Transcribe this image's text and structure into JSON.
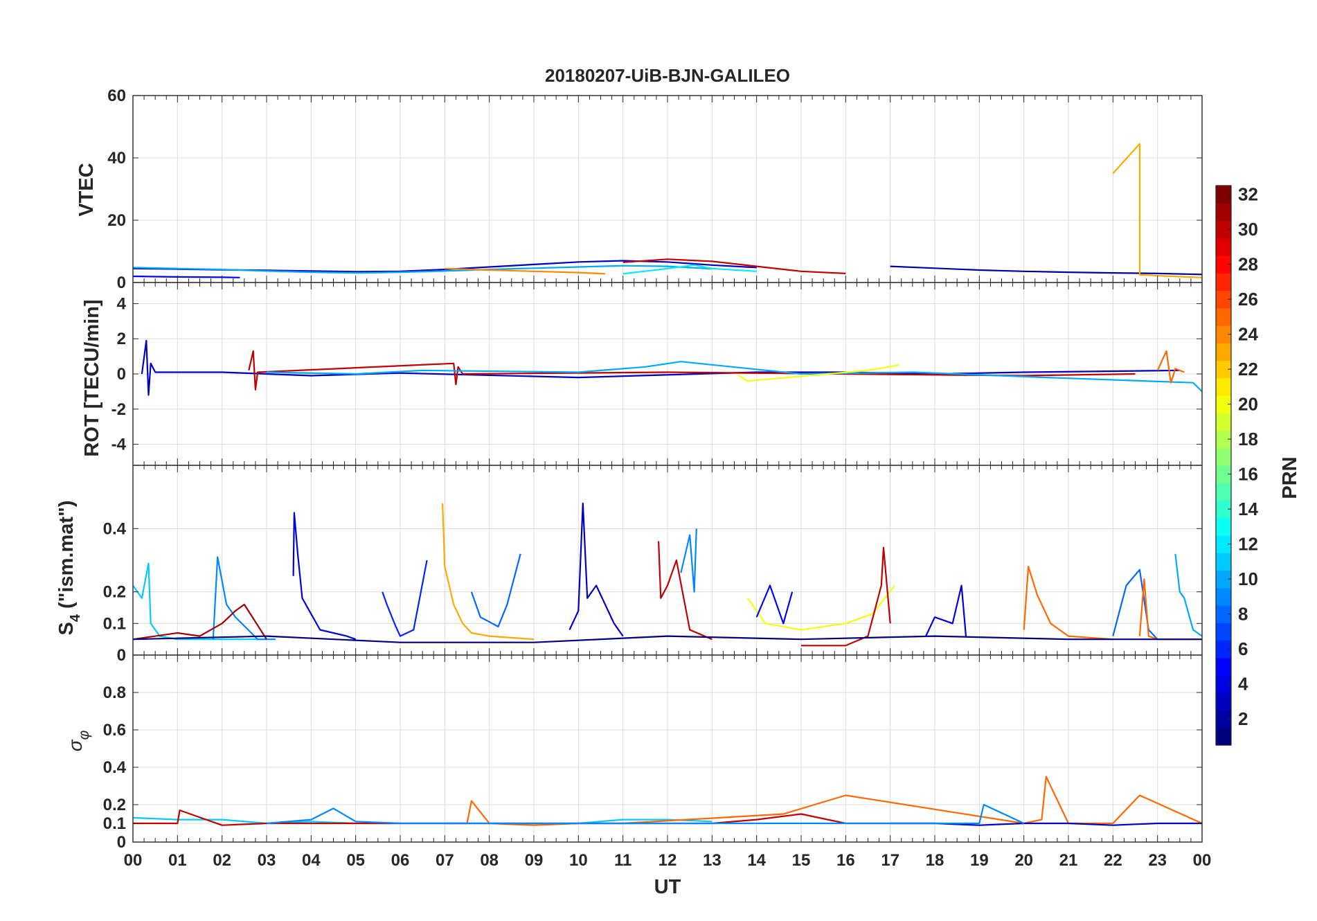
{
  "chart_data": [
    {
      "type": "line",
      "panel": "vtec",
      "title": "20180207-UiB-BJN-GALILEO",
      "ylabel": "VTEC",
      "xlabel": "",
      "xlim": [
        0,
        24
      ],
      "ylim": [
        0,
        60
      ],
      "yticks": [
        0,
        20,
        40,
        60
      ],
      "ytick_labels": [
        "0",
        "20",
        "40",
        "60"
      ],
      "grid": true,
      "series": [
        {
          "name": "PRN 3",
          "prn": 3,
          "x": [
            0,
            1,
            2,
            3,
            4,
            5,
            6,
            7,
            8,
            9,
            10,
            11,
            12,
            13,
            14
          ],
          "y": [
            4.5,
            4.3,
            4.1,
            3.9,
            3.7,
            3.5,
            3.6,
            4.2,
            5.0,
            5.8,
            6.6,
            7.0,
            6.6,
            5.6,
            4.8
          ]
        },
        {
          "name": "PRN 10",
          "prn": 10,
          "x": [
            0,
            1,
            2,
            3,
            4,
            5,
            6,
            7,
            8,
            9,
            10,
            11,
            12,
            13
          ],
          "y": [
            4.8,
            4.5,
            4.2,
            3.7,
            3.3,
            3.1,
            3.3,
            3.7,
            4.2,
            4.6,
            5.0,
            5.4,
            5.2,
            4.4
          ]
        },
        {
          "name": "PRN 30",
          "prn": 30,
          "x": [
            11,
            12,
            13,
            14,
            15,
            16
          ],
          "y": [
            6.5,
            7.5,
            6.8,
            5.2,
            3.6,
            2.9
          ]
        },
        {
          "name": "PRN 24",
          "prn": 24,
          "x": [
            7,
            8,
            9,
            10,
            10.6
          ],
          "y": [
            4.5,
            4.0,
            3.6,
            3.2,
            2.8
          ]
        },
        {
          "name": "PRN 12",
          "prn": 12,
          "x": [
            11,
            12,
            12.6,
            13,
            14
          ],
          "y": [
            2.8,
            4.5,
            5.6,
            4.5,
            3.6
          ]
        },
        {
          "name": "PRN 2",
          "prn": 2,
          "x": [
            17,
            18,
            19,
            20,
            21,
            22,
            23,
            24
          ],
          "y": [
            5.2,
            4.6,
            4.0,
            3.6,
            3.3,
            3.1,
            2.9,
            2.6
          ]
        },
        {
          "name": "PRN 23",
          "prn": 23,
          "x": [
            22,
            22.6,
            22.6,
            23,
            24
          ],
          "y": [
            35,
            44.5,
            2.5,
            2.2,
            1.6
          ]
        },
        {
          "name": "PRN 5",
          "prn": 5,
          "x": [
            0,
            1,
            2,
            2.4
          ],
          "y": [
            2.0,
            1.8,
            1.7,
            1.6
          ]
        }
      ]
    },
    {
      "type": "line",
      "panel": "rot",
      "ylabel": "ROT [TECU/min]",
      "xlim": [
        0,
        24
      ],
      "ylim": [
        -5.2,
        5.2
      ],
      "yticks": [
        -4,
        -2,
        0,
        2,
        4
      ],
      "ytick_labels": [
        "-4",
        "-2",
        "0",
        "2",
        "4"
      ],
      "grid": true,
      "series": [
        {
          "name": "PRN 3",
          "prn": 3,
          "x": [
            0.2,
            0.3,
            0.35,
            0.4,
            0.5,
            2,
            4,
            6,
            10,
            14,
            16,
            18,
            20,
            23.5
          ],
          "y": [
            0,
            1.9,
            -1.2,
            0.6,
            0.1,
            0.1,
            -0.1,
            0.05,
            -0.2,
            0.1,
            0.1,
            0.0,
            0.1,
            0.2
          ]
        },
        {
          "name": "PRN 30",
          "prn": 30,
          "x": [
            2.6,
            2.7,
            2.75,
            2.8,
            7.2,
            7.25,
            7.3,
            7.4,
            12,
            16,
            20,
            22.5
          ],
          "y": [
            0.2,
            1.3,
            -0.9,
            0.1,
            0.6,
            -0.6,
            0.4,
            0.0,
            0.1,
            0.0,
            -0.1,
            0.0
          ]
        },
        {
          "name": "PRN 10",
          "prn": 10,
          "x": [
            3,
            5,
            6.5,
            10,
            11.5,
            12.3,
            15,
            17.5,
            20.5,
            23.8,
            24
          ],
          "y": [
            0.1,
            0.0,
            0.2,
            0.1,
            0.4,
            0.7,
            0.0,
            0.1,
            -0.2,
            -0.5,
            -1.0
          ]
        },
        {
          "name": "PRN 20",
          "prn": 20,
          "x": [
            13.6,
            13.8,
            16.5,
            17.2
          ],
          "y": [
            -0.1,
            -0.4,
            0.2,
            0.5
          ]
        },
        {
          "name": "PRN 25",
          "prn": 25,
          "x": [
            23,
            23.2,
            23.3,
            23.4,
            23.6
          ],
          "y": [
            0.2,
            1.3,
            -0.5,
            0.3,
            0.1
          ]
        }
      ]
    },
    {
      "type": "line",
      "panel": "s4",
      "ylabel": "S4 (\"ism.mat\")",
      "xlim": [
        0,
        24
      ],
      "ylim": [
        0,
        0.6
      ],
      "yticks": [
        0,
        0.1,
        0.2,
        0.4
      ],
      "ytick_labels": [
        "0",
        "0.1",
        "0.2",
        "0.4"
      ],
      "grid": true,
      "series": [
        {
          "name": "PRN 11",
          "prn": 11,
          "x": [
            0,
            0.2,
            0.35,
            0.4,
            0.6,
            1,
            2,
            3
          ],
          "y": [
            0.22,
            0.18,
            0.29,
            0.1,
            0.06,
            0.05,
            0.05,
            0.05
          ]
        },
        {
          "name": "PRN 9",
          "prn": 9,
          "x": [
            1.8,
            1.9,
            2.1,
            2.3,
            2.8,
            3.2
          ],
          "y": [
            0.05,
            0.31,
            0.16,
            0.12,
            0.05,
            0.05
          ]
        },
        {
          "name": "PRN 4",
          "prn": 4,
          "x": [
            3.6,
            3.62,
            3.7,
            3.8,
            4.2,
            4.8,
            5
          ],
          "y": [
            0.25,
            0.45,
            0.32,
            0.18,
            0.08,
            0.06,
            0.05
          ]
        },
        {
          "name": "PRN 31",
          "prn": 31,
          "x": [
            0,
            1,
            1.5,
            2,
            2.3,
            2.5,
            3
          ],
          "y": [
            0.05,
            0.07,
            0.06,
            0.1,
            0.14,
            0.16,
            0.05
          ]
        },
        {
          "name": "PRN 6",
          "prn": 6,
          "x": [
            5.6,
            5.7,
            5.9,
            6,
            6.3,
            6.6
          ],
          "y": [
            0.2,
            0.16,
            0.09,
            0.06,
            0.08,
            0.3
          ]
        },
        {
          "name": "PRN 23",
          "prn": 23,
          "x": [
            6.95,
            7,
            7.2,
            7.4,
            7.6,
            8,
            9
          ],
          "y": [
            0.48,
            0.28,
            0.16,
            0.1,
            0.07,
            0.06,
            0.05
          ]
        },
        {
          "name": "PRN 8",
          "prn": 8,
          "x": [
            7.6,
            7.8,
            8.2,
            8.4,
            8.7
          ],
          "y": [
            0.2,
            0.12,
            0.09,
            0.16,
            0.32
          ]
        },
        {
          "name": "PRN 3",
          "prn": 3,
          "x": [
            9.8,
            10,
            10.1,
            10.2,
            10.4,
            10.8,
            11
          ],
          "y": [
            0.08,
            0.14,
            0.48,
            0.18,
            0.22,
            0.1,
            0.06
          ]
        },
        {
          "name": "PRN 30",
          "prn": 30,
          "x": [
            11.8,
            11.85,
            12,
            12.2,
            12.5,
            13
          ],
          "y": [
            0.36,
            0.18,
            0.22,
            0.3,
            0.08,
            0.05
          ]
        },
        {
          "name": "PRN 9",
          "prn": 9,
          "x": [
            12.3,
            12.5,
            12.6,
            12.65
          ],
          "y": [
            0.26,
            0.38,
            0.2,
            0.4
          ]
        },
        {
          "name": "PRN 20",
          "prn": 20,
          "x": [
            13.8,
            14.2,
            15,
            16,
            16.6,
            17.1
          ],
          "y": [
            0.18,
            0.1,
            0.08,
            0.1,
            0.13,
            0.22
          ]
        },
        {
          "name": "PRN 5",
          "prn": 5,
          "x": [
            14,
            14.3,
            14.6,
            14.8
          ],
          "y": [
            0.12,
            0.22,
            0.1,
            0.2
          ]
        },
        {
          "name": "PRN 30",
          "prn": 30,
          "x": [
            15,
            16,
            16.5,
            16.8,
            16.85,
            17
          ],
          "y": [
            0.03,
            0.03,
            0.06,
            0.22,
            0.34,
            0.1
          ]
        },
        {
          "name": "PRN 4",
          "prn": 4,
          "x": [
            17.8,
            18,
            18.4,
            18.6,
            18.7
          ],
          "y": [
            0.06,
            0.12,
            0.1,
            0.22,
            0.06
          ]
        },
        {
          "name": "PRN 25",
          "prn": 25,
          "x": [
            20,
            20.1,
            20.3,
            20.6,
            21,
            22
          ],
          "y": [
            0.08,
            0.28,
            0.19,
            0.1,
            0.06,
            0.05
          ]
        },
        {
          "name": "PRN 8",
          "prn": 8,
          "x": [
            22,
            22.3,
            22.6,
            22.8,
            23
          ],
          "y": [
            0.06,
            0.22,
            0.27,
            0.08,
            0.05
          ]
        },
        {
          "name": "PRN 10",
          "prn": 10,
          "x": [
            23.4,
            23.5,
            23.6,
            23.8,
            24
          ],
          "y": [
            0.32,
            0.2,
            0.18,
            0.08,
            0.06
          ]
        },
        {
          "name": "PRN 25",
          "prn": 25,
          "x": [
            22.6,
            22.7,
            22.8,
            23,
            24
          ],
          "y": [
            0.06,
            0.24,
            0.06,
            0.05,
            0.05
          ]
        },
        {
          "name": "PRN 1",
          "prn": 1,
          "x": [
            0,
            3,
            6,
            9,
            12,
            15,
            18,
            21,
            24
          ],
          "y": [
            0.05,
            0.06,
            0.04,
            0.04,
            0.06,
            0.05,
            0.06,
            0.05,
            0.05
          ]
        }
      ]
    },
    {
      "type": "line",
      "panel": "sigma_phi",
      "ylabel": "σφ",
      "xlabel": "UT",
      "xlim": [
        0,
        24
      ],
      "ylim": [
        0,
        1
      ],
      "yticks": [
        0,
        0.1,
        0.2,
        0.4,
        0.6,
        0.8
      ],
      "ytick_labels": [
        "0",
        "0.1",
        "0.2",
        "0.4",
        "0.6",
        "0.8"
      ],
      "xticks": [
        0,
        1,
        2,
        3,
        4,
        5,
        6,
        7,
        8,
        9,
        10,
        11,
        12,
        13,
        14,
        15,
        16,
        17,
        18,
        19,
        20,
        21,
        22,
        23,
        24
      ],
      "xtick_labels": [
        "00",
        "01",
        "02",
        "03",
        "04",
        "05",
        "06",
        "07",
        "08",
        "09",
        "10",
        "11",
        "12",
        "13",
        "14",
        "15",
        "16",
        "17",
        "18",
        "19",
        "20",
        "21",
        "22",
        "23",
        "00"
      ],
      "grid": true,
      "series": [
        {
          "name": "PRN 11",
          "prn": 11,
          "x": [
            0,
            1,
            2,
            3,
            4,
            5,
            6,
            7,
            8,
            9,
            10,
            11,
            12,
            13
          ],
          "y": [
            0.13,
            0.12,
            0.12,
            0.1,
            0.11,
            0.1,
            0.1,
            0.1,
            0.1,
            0.1,
            0.1,
            0.12,
            0.12,
            0.11
          ]
        },
        {
          "name": "PRN 25",
          "prn": 25,
          "x": [
            7,
            7.5,
            7.6,
            8,
            9,
            10,
            11,
            14.6,
            16,
            20,
            20.4,
            20.5,
            21,
            22,
            22.6,
            24
          ],
          "y": [
            0.1,
            0.1,
            0.22,
            0.1,
            0.09,
            0.1,
            0.1,
            0.15,
            0.25,
            0.1,
            0.12,
            0.35,
            0.1,
            0.1,
            0.25,
            0.1
          ]
        },
        {
          "name": "PRN 30",
          "prn": 30,
          "x": [
            0,
            1,
            1.05,
            2,
            3,
            12,
            13,
            14,
            15,
            16,
            17,
            18
          ],
          "y": [
            0.1,
            0.1,
            0.17,
            0.09,
            0.1,
            0.1,
            0.1,
            0.12,
            0.15,
            0.1,
            0.1,
            0.1
          ]
        },
        {
          "name": "PRN 3",
          "prn": 3,
          "x": [
            17,
            18,
            19,
            20,
            21,
            22,
            23,
            24
          ],
          "y": [
            0.1,
            0.1,
            0.09,
            0.1,
            0.1,
            0.09,
            0.1,
            0.1
          ]
        },
        {
          "name": "PRN 9",
          "prn": 9,
          "x": [
            3,
            4,
            4.5,
            5,
            6,
            18,
            19,
            19.1,
            20
          ],
          "y": [
            0.1,
            0.12,
            0.18,
            0.11,
            0.1,
            0.1,
            0.1,
            0.2,
            0.1
          ]
        }
      ]
    }
  ],
  "colorbar": {
    "label": "PRN",
    "min": 1,
    "max": 32,
    "ticks": [
      2,
      4,
      6,
      8,
      10,
      12,
      14,
      16,
      18,
      20,
      22,
      24,
      26,
      28,
      30,
      32
    ],
    "tick_labels": [
      "2",
      "4",
      "6",
      "8",
      "10",
      "12",
      "14",
      "16",
      "18",
      "20",
      "22",
      "24",
      "26",
      "28",
      "30",
      "32"
    ],
    "colormap": "jet"
  }
}
